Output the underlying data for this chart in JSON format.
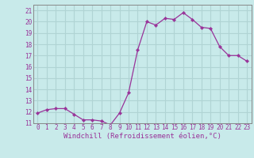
{
  "x": [
    0,
    1,
    2,
    3,
    4,
    5,
    6,
    7,
    8,
    9,
    10,
    11,
    12,
    13,
    14,
    15,
    16,
    17,
    18,
    19,
    20,
    21,
    22,
    23
  ],
  "y": [
    11.9,
    12.2,
    12.3,
    12.3,
    11.8,
    11.3,
    11.3,
    11.2,
    10.85,
    11.9,
    13.7,
    17.5,
    20.0,
    19.7,
    20.3,
    20.2,
    20.8,
    20.2,
    19.5,
    19.4,
    17.8,
    17.0,
    17.0,
    16.5
  ],
  "line_color": "#993399",
  "marker": "D",
  "marker_size": 2.2,
  "bg_color": "#c8eaea",
  "grid_color": "#b0d4d4",
  "xlabel": "Windchill (Refroidissement éolien,°C)",
  "xlabel_color": "#993399",
  "ylim": [
    11,
    21.5
  ],
  "xlim": [
    -0.5,
    23.5
  ],
  "yticks": [
    11,
    12,
    13,
    14,
    15,
    16,
    17,
    18,
    19,
    20,
    21
  ],
  "xticks": [
    0,
    1,
    2,
    3,
    4,
    5,
    6,
    7,
    8,
    9,
    10,
    11,
    12,
    13,
    14,
    15,
    16,
    17,
    18,
    19,
    20,
    21,
    22,
    23
  ],
  "tick_label_fontsize": 5.5,
  "xlabel_fontsize": 6.5,
  "axis_color": "#993399",
  "spine_color": "#888888"
}
